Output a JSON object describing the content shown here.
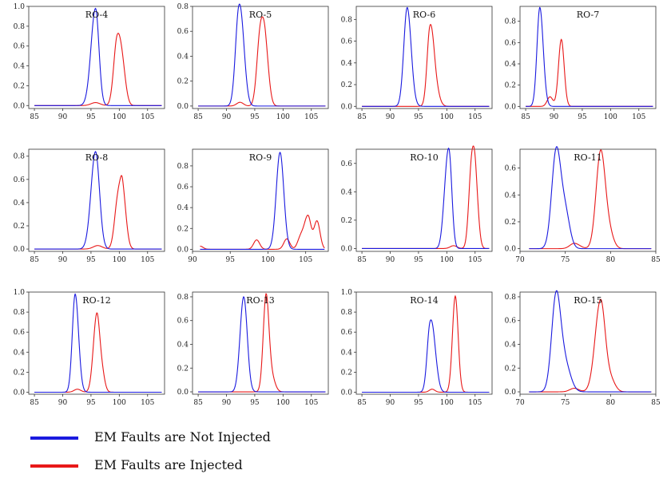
{
  "colors": {
    "not_injected": "#1a1adf",
    "injected": "#e81818"
  },
  "legend": {
    "not_injected_label": "EM Faults are Not Injected",
    "injected_label": "EM Faults are Injected"
  },
  "chart_data": [
    {
      "title": "RO-4",
      "type": "line",
      "xlim": [
        84,
        108
      ],
      "xticks": [
        85,
        90,
        95,
        100,
        105
      ],
      "ylim": [
        -0.03,
        1.0
      ],
      "yticks": [
        0.0,
        0.2,
        0.4,
        0.6,
        0.8,
        1.0
      ],
      "series": [
        {
          "color": "blue",
          "peaks": [
            {
              "x": 95.8,
              "a": 0.98,
              "sl": 0.8,
              "sr": 0.6
            }
          ]
        },
        {
          "color": "red",
          "peaks": [
            {
              "x": 99.6,
              "a": 0.64,
              "sl": 0.6,
              "sr": 0.7
            },
            {
              "x": 100.6,
              "a": 0.28,
              "sl": 0.6,
              "sr": 0.6
            },
            {
              "x": 95.8,
              "a": 0.03,
              "sl": 0.8,
              "sr": 0.8
            }
          ]
        }
      ]
    },
    {
      "title": "RO-5",
      "type": "line",
      "xlim": [
        84,
        108
      ],
      "xticks": [
        85,
        90,
        95,
        100,
        105
      ],
      "ylim": [
        -0.02,
        0.8
      ],
      "yticks": [
        0.0,
        0.2,
        0.4,
        0.6,
        0.8
      ],
      "series": [
        {
          "color": "blue",
          "peaks": [
            {
              "x": 92.2,
              "a": 0.77,
              "sl": 0.6,
              "sr": 0.7
            },
            {
              "x": 93.0,
              "a": 0.15,
              "sl": 0.5,
              "sr": 0.6
            }
          ]
        },
        {
          "color": "red",
          "peaks": [
            {
              "x": 96.0,
              "a": 0.59,
              "sl": 0.6,
              "sr": 0.6
            },
            {
              "x": 96.9,
              "a": 0.4,
              "sl": 0.5,
              "sr": 0.6
            },
            {
              "x": 92.4,
              "a": 0.03,
              "sl": 0.6,
              "sr": 0.6
            }
          ]
        }
      ]
    },
    {
      "title": "RO-6",
      "type": "line",
      "xlim": [
        84,
        108
      ],
      "xticks": [
        85,
        90,
        95,
        100,
        105
      ],
      "ylim": [
        -0.02,
        0.92
      ],
      "yticks": [
        0.0,
        0.2,
        0.4,
        0.6,
        0.8
      ],
      "series": [
        {
          "color": "blue",
          "peaks": [
            {
              "x": 93.0,
              "a": 0.91,
              "sl": 0.6,
              "sr": 0.7
            }
          ]
        },
        {
          "color": "red",
          "peaks": [
            {
              "x": 97.0,
              "a": 0.68,
              "sl": 0.5,
              "sr": 0.6
            },
            {
              "x": 97.8,
              "a": 0.22,
              "sl": 0.5,
              "sr": 0.7
            }
          ]
        }
      ]
    },
    {
      "title": "RO-7",
      "type": "line",
      "xlim": [
        84,
        108
      ],
      "xticks": [
        85,
        90,
        95,
        100,
        105
      ],
      "ylim": [
        -0.02,
        0.94
      ],
      "yticks": [
        0.0,
        0.2,
        0.4,
        0.6,
        0.8
      ],
      "series": [
        {
          "color": "blue",
          "peaks": [
            {
              "x": 87.5,
              "a": 0.93,
              "sl": 0.5,
              "sr": 0.6
            }
          ]
        },
        {
          "color": "red",
          "peaks": [
            {
              "x": 91.3,
              "a": 0.63,
              "sl": 0.5,
              "sr": 0.5
            },
            {
              "x": 89.3,
              "a": 0.09,
              "sl": 0.5,
              "sr": 0.5
            }
          ]
        }
      ]
    },
    {
      "title": "RO-8",
      "type": "line",
      "xlim": [
        84,
        108
      ],
      "xticks": [
        85,
        90,
        95,
        100,
        105
      ],
      "ylim": [
        -0.02,
        0.86
      ],
      "yticks": [
        0.0,
        0.2,
        0.4,
        0.6,
        0.8
      ],
      "series": [
        {
          "color": "blue",
          "peaks": [
            {
              "x": 95.8,
              "a": 0.84,
              "sl": 0.8,
              "sr": 0.7
            }
          ]
        },
        {
          "color": "red",
          "peaks": [
            {
              "x": 99.8,
              "a": 0.45,
              "sl": 0.6,
              "sr": 0.5
            },
            {
              "x": 100.6,
              "a": 0.47,
              "sl": 0.4,
              "sr": 0.6
            },
            {
              "x": 96.2,
              "a": 0.03,
              "sl": 0.8,
              "sr": 0.8
            }
          ]
        }
      ]
    },
    {
      "title": "RO-9",
      "type": "line",
      "xlim": [
        90,
        108
      ],
      "xticks": [
        90,
        95,
        100,
        105
      ],
      "ylim": [
        -0.02,
        0.96
      ],
      "yticks": [
        0.0,
        0.2,
        0.4,
        0.6,
        0.8
      ],
      "series": [
        {
          "color": "blue",
          "peaks": [
            {
              "x": 101.6,
              "a": 0.93,
              "sl": 0.5,
              "sr": 0.5
            }
          ]
        },
        {
          "color": "red",
          "peaks": [
            {
              "x": 91.0,
              "a": 0.03,
              "sl": 0.4,
              "sr": 0.4
            },
            {
              "x": 98.5,
              "a": 0.09,
              "sl": 0.4,
              "sr": 0.4
            },
            {
              "x": 102.5,
              "a": 0.1,
              "sl": 0.4,
              "sr": 0.4
            },
            {
              "x": 105.3,
              "a": 0.32,
              "sl": 0.5,
              "sr": 0.4
            },
            {
              "x": 106.5,
              "a": 0.27,
              "sl": 0.4,
              "sr": 0.4
            },
            {
              "x": 104.3,
              "a": 0.1,
              "sl": 0.4,
              "sr": 0.4
            }
          ]
        }
      ]
    },
    {
      "title": "RO-10",
      "type": "line",
      "xlim": [
        84,
        108
      ],
      "xticks": [
        85,
        90,
        95,
        100,
        105
      ],
      "ylim": [
        -0.02,
        0.7
      ],
      "yticks": [
        0.0,
        0.2,
        0.4,
        0.6
      ],
      "series": [
        {
          "color": "blue",
          "peaks": [
            {
              "x": 100.4,
              "a": 0.66,
              "sl": 0.6,
              "sr": 0.5
            },
            {
              "x": 99.6,
              "a": 0.15,
              "sl": 0.5,
              "sr": 0.5
            }
          ]
        },
        {
          "color": "red",
          "peaks": [
            {
              "x": 104.4,
              "a": 0.59,
              "sl": 0.5,
              "sr": 0.5
            },
            {
              "x": 105.1,
              "a": 0.38,
              "sl": 0.4,
              "sr": 0.5
            },
            {
              "x": 101.2,
              "a": 0.02,
              "sl": 0.6,
              "sr": 0.6
            }
          ]
        }
      ]
    },
    {
      "title": "RO-11",
      "type": "line",
      "xlim": [
        70,
        85
      ],
      "xticks": [
        70,
        75,
        80,
        85
      ],
      "ylim": [
        -0.02,
        0.74
      ],
      "yticks": [
        0.0,
        0.2,
        0.4,
        0.6
      ],
      "series": [
        {
          "color": "blue",
          "peaks": [
            {
              "x": 74.0,
              "a": 0.72,
              "sl": 0.5,
              "sr": 0.5
            },
            {
              "x": 75.0,
              "a": 0.26,
              "sl": 0.5,
              "sr": 0.5
            }
          ]
        },
        {
          "color": "red",
          "peaks": [
            {
              "x": 78.9,
              "a": 0.71,
              "sl": 0.5,
              "sr": 0.5
            },
            {
              "x": 79.8,
              "a": 0.12,
              "sl": 0.5,
              "sr": 0.5
            },
            {
              "x": 76.0,
              "a": 0.04,
              "sl": 0.5,
              "sr": 0.6
            }
          ]
        }
      ]
    },
    {
      "title": "RO-12",
      "type": "line",
      "xlim": [
        84,
        108
      ],
      "xticks": [
        85,
        90,
        95,
        100,
        105
      ],
      "ylim": [
        -0.02,
        1.0
      ],
      "yticks": [
        0.0,
        0.2,
        0.4,
        0.6,
        0.8,
        1.0
      ],
      "series": [
        {
          "color": "blue",
          "peaks": [
            {
              "x": 92.2,
              "a": 0.98,
              "sl": 0.5,
              "sr": 0.6
            }
          ]
        },
        {
          "color": "red",
          "peaks": [
            {
              "x": 96.0,
              "a": 0.75,
              "sl": 0.6,
              "sr": 0.5
            },
            {
              "x": 96.9,
              "a": 0.2,
              "sl": 0.5,
              "sr": 0.5
            },
            {
              "x": 92.6,
              "a": 0.03,
              "sl": 0.6,
              "sr": 0.6
            }
          ]
        }
      ]
    },
    {
      "title": "RO-13",
      "type": "line",
      "xlim": [
        84,
        108
      ],
      "xticks": [
        85,
        90,
        95,
        100,
        105
      ],
      "ylim": [
        -0.02,
        0.84
      ],
      "yticks": [
        0.0,
        0.2,
        0.4,
        0.6,
        0.8
      ],
      "series": [
        {
          "color": "blue",
          "peaks": [
            {
              "x": 93.1,
              "a": 0.76,
              "sl": 0.6,
              "sr": 0.6
            },
            {
              "x": 92.4,
              "a": 0.1,
              "sl": 0.5,
              "sr": 0.5
            }
          ]
        },
        {
          "color": "red",
          "peaks": [
            {
              "x": 97.0,
              "a": 0.81,
              "sl": 0.5,
              "sr": 0.5
            },
            {
              "x": 98.0,
              "a": 0.12,
              "sl": 0.5,
              "sr": 0.6
            }
          ]
        }
      ]
    },
    {
      "title": "RO-14",
      "type": "line",
      "xlim": [
        84,
        108
      ],
      "xticks": [
        85,
        90,
        95,
        100,
        105
      ],
      "ylim": [
        -0.02,
        1.0
      ],
      "yticks": [
        0.0,
        0.2,
        0.4,
        0.6,
        0.8,
        1.0
      ],
      "series": [
        {
          "color": "blue",
          "peaks": [
            {
              "x": 97.0,
              "a": 0.62,
              "sl": 0.5,
              "sr": 0.6
            },
            {
              "x": 97.8,
              "a": 0.28,
              "sl": 0.5,
              "sr": 0.6
            }
          ]
        },
        {
          "color": "red",
          "peaks": [
            {
              "x": 101.5,
              "a": 0.96,
              "sl": 0.5,
              "sr": 0.5
            },
            {
              "x": 97.4,
              "a": 0.03,
              "sl": 0.5,
              "sr": 0.5
            }
          ]
        }
      ]
    },
    {
      "title": "RO-15",
      "type": "line",
      "xlim": [
        70,
        85
      ],
      "xticks": [
        70,
        75,
        80,
        85
      ],
      "ylim": [
        -0.02,
        0.84
      ],
      "yticks": [
        0.0,
        0.2,
        0.4,
        0.6,
        0.8
      ],
      "series": [
        {
          "color": "blue",
          "peaks": [
            {
              "x": 74.0,
              "a": 0.82,
              "sl": 0.5,
              "sr": 0.5
            },
            {
              "x": 75.0,
              "a": 0.22,
              "sl": 0.5,
              "sr": 0.6
            }
          ]
        },
        {
          "color": "red",
          "peaks": [
            {
              "x": 78.9,
              "a": 0.77,
              "sl": 0.6,
              "sr": 0.5
            },
            {
              "x": 80.0,
              "a": 0.1,
              "sl": 0.5,
              "sr": 0.5
            },
            {
              "x": 76.0,
              "a": 0.03,
              "sl": 0.5,
              "sr": 0.5
            }
          ]
        }
      ]
    }
  ]
}
